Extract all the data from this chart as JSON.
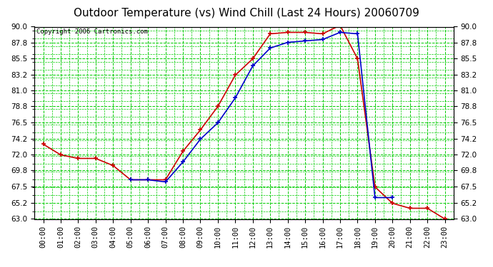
{
  "title": "Outdoor Temperature (vs) Wind Chill (Last 24 Hours) 20060709",
  "copyright": "Copyright 2006 Cartronics.com",
  "hours": [
    "00:00",
    "01:00",
    "02:00",
    "03:00",
    "04:00",
    "05:00",
    "06:00",
    "07:00",
    "08:00",
    "09:00",
    "10:00",
    "11:00",
    "12:00",
    "13:00",
    "14:00",
    "15:00",
    "16:00",
    "17:00",
    "18:00",
    "19:00",
    "20:00",
    "21:00",
    "22:00",
    "23:00"
  ],
  "temp": [
    73.5,
    72.0,
    71.5,
    71.5,
    70.5,
    68.5,
    68.5,
    68.5,
    72.5,
    75.5,
    78.8,
    83.2,
    85.5,
    89.0,
    89.2,
    89.2,
    89.0,
    90.2,
    85.5,
    67.5,
    65.2,
    64.5,
    64.5,
    63.0
  ],
  "wind_chill": [
    null,
    null,
    null,
    null,
    null,
    68.5,
    68.5,
    68.2,
    71.0,
    74.2,
    76.5,
    80.0,
    84.5,
    87.0,
    87.8,
    88.0,
    88.2,
    89.2,
    89.0,
    66.0,
    66.0,
    null,
    null,
    null
  ],
  "temp_color": "#cc0000",
  "wind_chill_color": "#0000cc",
  "background_color": "#ffffff",
  "plot_bg_color": "#ffffff",
  "grid_color": "#00cc00",
  "grid_style": "--",
  "ylim": [
    63.0,
    90.0
  ],
  "yticks": [
    63.0,
    65.2,
    67.5,
    69.8,
    72.0,
    74.2,
    76.5,
    78.8,
    81.0,
    83.2,
    85.5,
    87.8,
    90.0
  ],
  "marker": "+",
  "markersize": 5,
  "linewidth": 1.2,
  "title_fontsize": 11,
  "tick_fontsize": 7.5,
  "copyright_fontsize": 6.5
}
